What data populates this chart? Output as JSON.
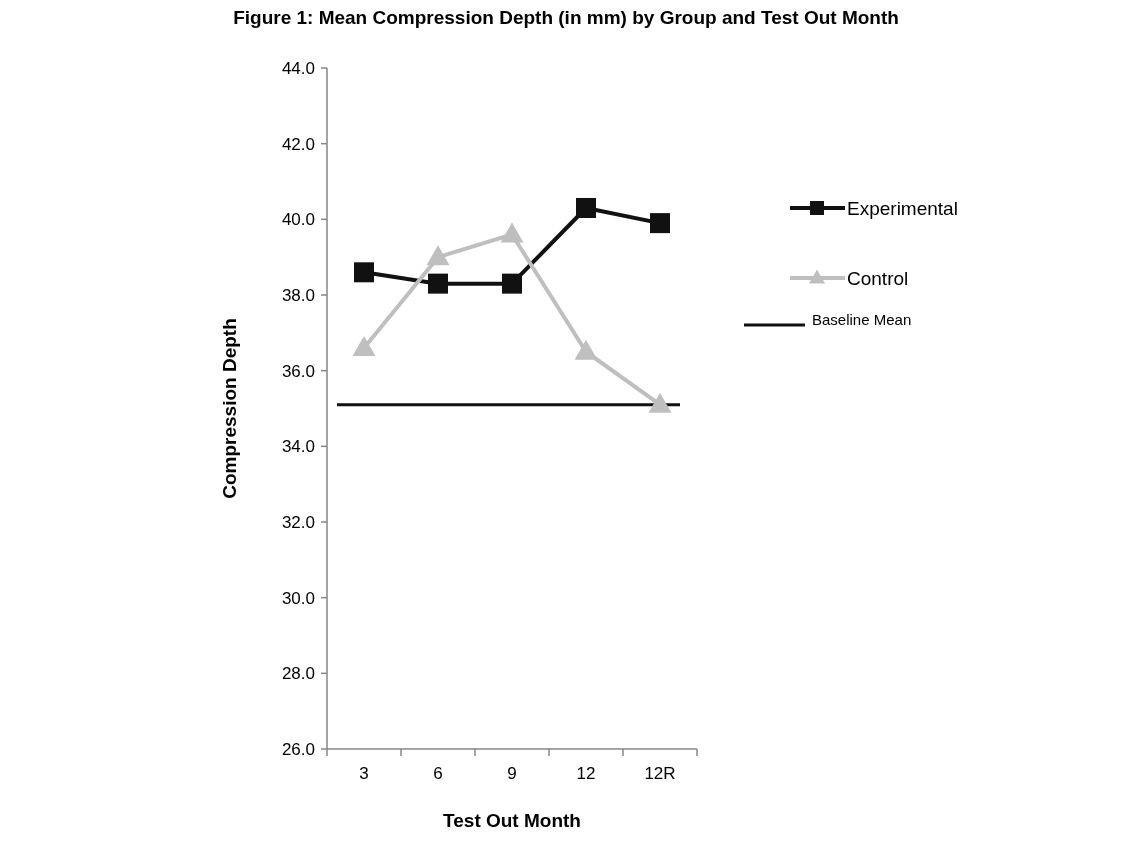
{
  "chart_data": {
    "type": "line",
    "title": "Figure 1: Mean Compression Depth (in mm) by Group and Test Out Month",
    "xlabel": "Test Out Month",
    "ylabel": "Compression Depth",
    "categories": [
      "3",
      "6",
      "9",
      "12",
      "12R"
    ],
    "series": [
      {
        "name": "Experimental",
        "color": "#111111",
        "marker": "square",
        "values": [
          38.6,
          38.3,
          38.3,
          40.3,
          39.9
        ]
      },
      {
        "name": "Control",
        "color": "#bfbfbf",
        "marker": "triangle",
        "values": [
          36.6,
          39.0,
          39.6,
          36.5,
          35.1
        ]
      }
    ],
    "ylim": [
      26,
      44
    ],
    "yticks": [
      {
        "value": 26,
        "label": "26.0"
      },
      {
        "value": 28,
        "label": "28.0"
      },
      {
        "value": 30,
        "label": "30.0"
      },
      {
        "value": 32,
        "label": "32.0"
      },
      {
        "value": 34,
        "label": "34.0"
      },
      {
        "value": 36,
        "label": "36.0"
      },
      {
        "value": 38,
        "label": "38.0"
      },
      {
        "value": 40,
        "label": "40.0"
      },
      {
        "value": 42,
        "label": "42.0"
      },
      {
        "value": 44,
        "label": "44.0"
      }
    ],
    "ref_lines": [
      {
        "axis": "y",
        "value": 35.1,
        "label": "Baseline Mean",
        "color": "#111111"
      }
    ],
    "grid": false,
    "legend": "right"
  }
}
